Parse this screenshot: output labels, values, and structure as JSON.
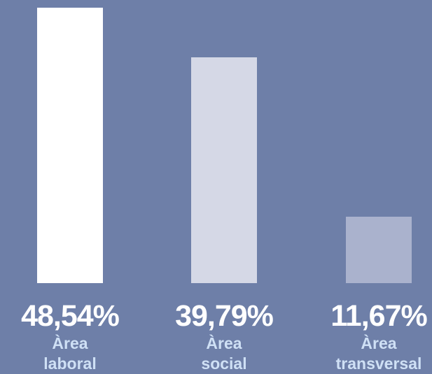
{
  "chart_data": {
    "type": "bar",
    "categories": [
      "Àrea laboral",
      "Àrea social",
      "Àrea transversal"
    ],
    "values": [
      48.54,
      39.79,
      11.67
    ],
    "value_labels": [
      "48,54%",
      "39,79%",
      "11,67%"
    ],
    "colors": [
      "#ffffff",
      "#d5d8e6",
      "#aab2cd"
    ]
  }
}
